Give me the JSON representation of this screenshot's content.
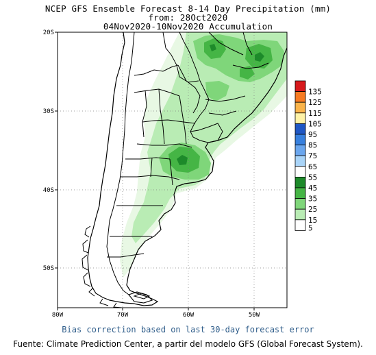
{
  "title": {
    "line1": "NCEP GFS Ensemble Forecast 8-14 Day Precipitation (mm)",
    "line2": "from: 28Oct2020",
    "line3": "04Nov2020-10Nov2020 Accumulation"
  },
  "map": {
    "lat_labels": [
      "20S",
      "30S",
      "40S",
      "50S"
    ],
    "lon_labels": [
      "80W",
      "70W",
      "60W",
      "50W"
    ]
  },
  "legend": {
    "values": [
      "135",
      "125",
      "115",
      "105",
      "95",
      "85",
      "75",
      "65",
      "55",
      "45",
      "35",
      "25",
      "15",
      "5"
    ],
    "colors": [
      "#d7191c",
      "#f77b22",
      "#fbb44a",
      "#fff2a6",
      "#1f57c4",
      "#3780de",
      "#6aa6ee",
      "#a9d4f8",
      "#ffffff",
      "#1d8a2a",
      "#45b545",
      "#7fd67a",
      "#b9ecb4",
      "#ffffff"
    ]
  },
  "footer": {
    "bias_note": "Bias correction based on last 30-day forecast error",
    "source": "Fuente: Climate Prediction Center, a partir del modelo GFS (Global Forecast System)."
  }
}
